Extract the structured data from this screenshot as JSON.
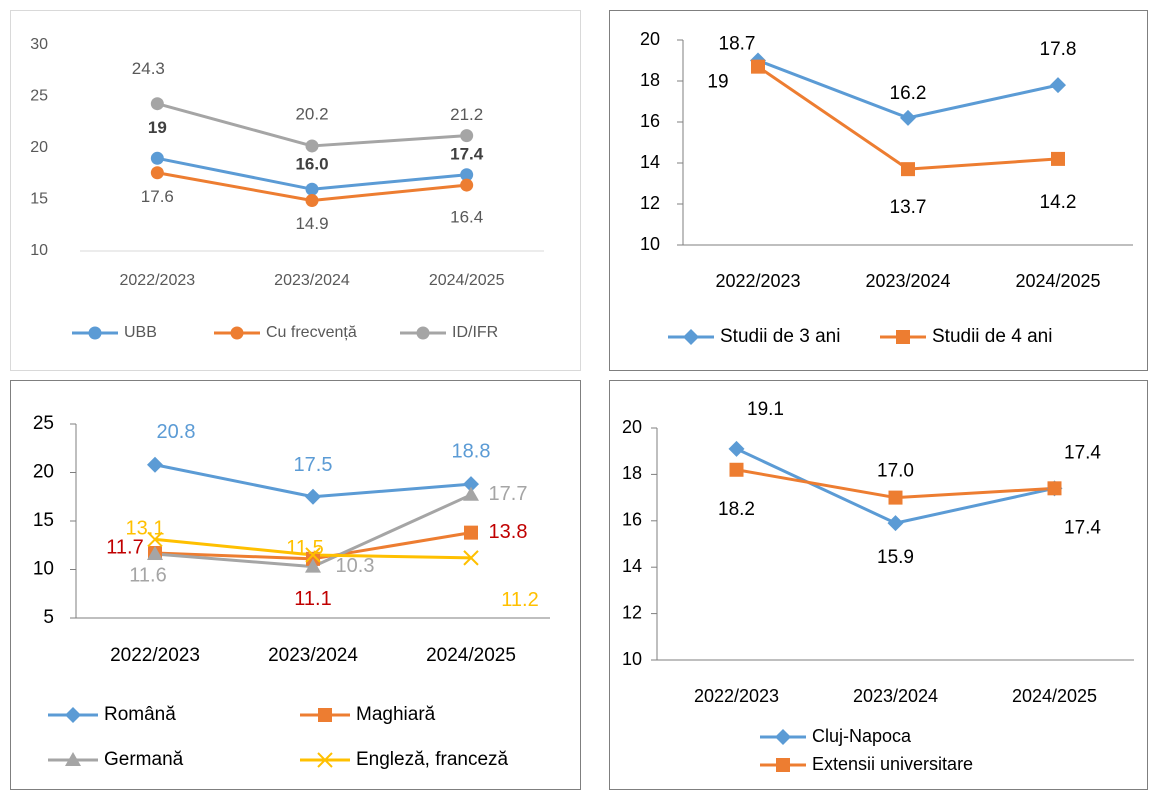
{
  "chart_data": [
    {
      "type": "line",
      "categories": [
        "2022/2023",
        "2023/2024",
        "2024/2025"
      ],
      "ylim": [
        10,
        30
      ],
      "yticks": [
        10,
        15,
        20,
        25,
        30
      ],
      "series": [
        {
          "name": "UBB",
          "color": "#5b9bd5",
          "marker": "circle",
          "label_color": "#404040",
          "label_bold": true,
          "values": [
            19,
            16,
            17.4
          ],
          "value_labels": [
            "19",
            "16.0",
            "17.4"
          ]
        },
        {
          "name": "Cu frecvență",
          "color": "#ed7d31",
          "marker": "circle",
          "label_color": "#595959",
          "values": [
            17.6,
            14.9,
            16.4
          ]
        },
        {
          "name": "ID/IFR",
          "color": "#a5a5a5",
          "marker": "circle",
          "label_color": "#595959",
          "values": [
            24.3,
            20.2,
            21.2
          ]
        }
      ]
    },
    {
      "type": "line",
      "categories": [
        "2022/2023",
        "2023/2024",
        "2024/2025"
      ],
      "ylim": [
        10,
        20
      ],
      "yticks": [
        10,
        12,
        14,
        16,
        18,
        20
      ],
      "series": [
        {
          "name": "Studii de 3 ani",
          "color": "#5b9bd5",
          "marker": "diamond",
          "label_color": "#000000",
          "values": [
            19,
            16.2,
            17.8
          ]
        },
        {
          "name": "Studii de 4 ani",
          "color": "#ed7d31",
          "marker": "square",
          "label_color": "#000000",
          "values": [
            18.7,
            13.7,
            14.2
          ]
        }
      ]
    },
    {
      "type": "line",
      "categories": [
        "2022/2023",
        "2023/2024",
        "2024/2025"
      ],
      "ylim": [
        5,
        25
      ],
      "yticks": [
        5,
        10,
        15,
        20,
        25
      ],
      "series": [
        {
          "name": "Română",
          "color": "#5b9bd5",
          "marker": "diamond",
          "label_color": "#5b9bd5",
          "values": [
            20.8,
            17.5,
            18.8
          ]
        },
        {
          "name": "Maghiară",
          "color": "#ed7d31",
          "marker": "square",
          "label_color": "#c00000",
          "values": [
            11.7,
            11.1,
            13.8
          ]
        },
        {
          "name": "Germană",
          "color": "#a5a5a5",
          "marker": "triangle",
          "label_color": "#a5a5a5",
          "values": [
            11.6,
            10.3,
            17.7
          ]
        },
        {
          "name": "Engleză, franceză",
          "color": "#ffc000",
          "marker": "x",
          "label_color": "#ffc000",
          "values": [
            13.1,
            11.5,
            11.2
          ]
        }
      ]
    },
    {
      "type": "line",
      "categories": [
        "2022/2023",
        "2023/2024",
        "2024/2025"
      ],
      "ylim": [
        10,
        20
      ],
      "yticks": [
        10,
        12,
        14,
        16,
        18,
        20
      ],
      "series": [
        {
          "name": "Cluj-Napoca",
          "color": "#5b9bd5",
          "marker": "diamond",
          "label_color": "#000000",
          "values": [
            19.1,
            15.9,
            17.4
          ]
        },
        {
          "name": "Extensii universitare",
          "color": "#ed7d31",
          "marker": "square",
          "label_color": "#000000",
          "values": [
            18.2,
            17,
            17.4
          ],
          "value_labels": [
            "18.2",
            "17.0",
            "17.4"
          ]
        }
      ]
    }
  ]
}
